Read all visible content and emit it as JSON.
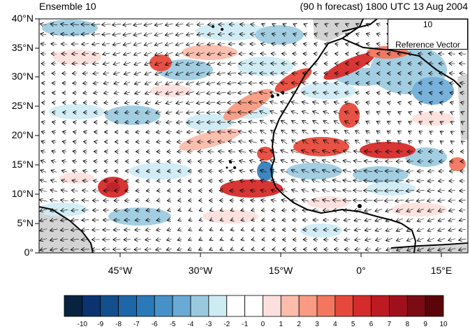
{
  "header": {
    "title_left": "Ensemble 10",
    "title_right": "(90 h forecast) 1800 UTC 13 Aug 2004"
  },
  "map": {
    "lat_ticks": [
      "40°N",
      "35°N",
      "30°N",
      "25°N",
      "20°N",
      "15°N",
      "10°N",
      "5°N",
      "0°"
    ],
    "lon_ticks": [
      "45°W",
      "30°W",
      "15°W",
      "0°",
      "15°E"
    ],
    "lat_range": [
      0,
      40
    ],
    "lon_range": [
      -60,
      20
    ],
    "land_color": "#d3d3d3",
    "coastline_color": "#000000"
  },
  "reference_vector": {
    "value": "10",
    "label": "Reference Vector"
  },
  "colorbar": {
    "labels": [
      "-10",
      "-9",
      "-8",
      "-7",
      "-6",
      "-5",
      "-4",
      "-3",
      "-2",
      "-1",
      "0",
      "1",
      "2",
      "3",
      "4",
      "5",
      "6",
      "7",
      "8",
      "9",
      "10"
    ],
    "colors": [
      "#08233f",
      "#0a3370",
      "#134f8c",
      "#1e66a8",
      "#2a79b8",
      "#4692c8",
      "#6aaad6",
      "#9ac9df",
      "#cdebf3",
      "#ffffff",
      "#ffffff",
      "#fde0dd",
      "#fbbcac",
      "#f99a82",
      "#f3765e",
      "#e6493c",
      "#d62b2b",
      "#bd1a22",
      "#a0101c",
      "#7b0c14",
      "#5a0509"
    ]
  }
}
